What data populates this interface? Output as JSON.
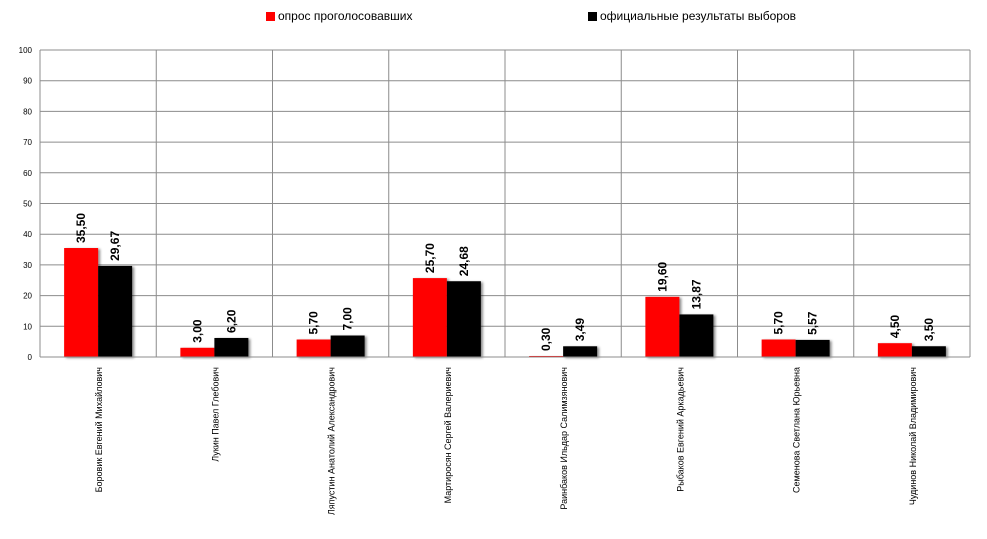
{
  "chart_data": {
    "type": "bar",
    "categories": [
      "Боровик Евгений Михайлович",
      "Лукин Павел Глебович",
      "Ляпустин Анатолий Александрович",
      "Мартиросян Сергей Валериевич",
      "Раинбаков Ильдар Салимзянович",
      "Рыбаков Евгений Аркадьевич",
      "Семенова Светлана Юрьевна",
      "Чудинов Николай Владимирович"
    ],
    "series": [
      {
        "name": "опрос проголосовавших",
        "color": "#ff0000",
        "values": [
          35.5,
          3.0,
          5.7,
          25.7,
          0.3,
          19.6,
          5.7,
          4.5
        ],
        "labels": [
          "35,50",
          "3,00",
          "5,70",
          "25,70",
          "0,30",
          "19,60",
          "5,70",
          "4,50"
        ]
      },
      {
        "name": "официальные результаты выборов",
        "color": "#000000",
        "values": [
          29.67,
          6.2,
          7.0,
          24.68,
          3.49,
          13.87,
          5.57,
          3.5
        ],
        "labels": [
          "29,67",
          "6,20",
          "7,00",
          "24,68",
          "3,49",
          "13,87",
          "5,57",
          "3,50"
        ]
      }
    ],
    "ylim": [
      0,
      100
    ],
    "yticks": [
      "0",
      "10",
      "20",
      "30",
      "40",
      "50",
      "60",
      "70",
      "80",
      "90",
      "100"
    ],
    "grid": true,
    "legend_position": "top"
  }
}
